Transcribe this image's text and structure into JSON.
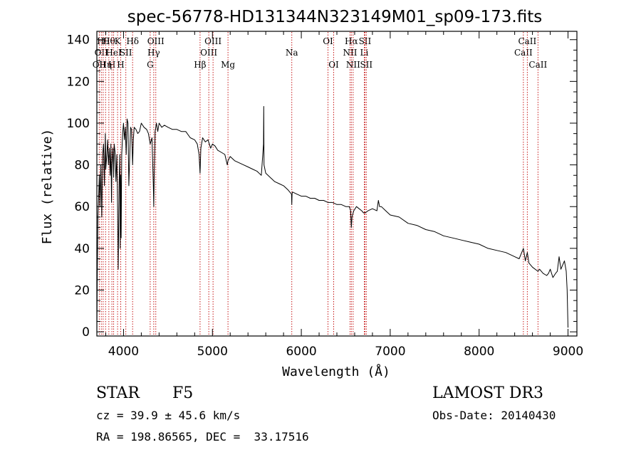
{
  "chart_data": {
    "type": "line",
    "title": "spec-56778-HD131344N323149M01_sp09-173.fits",
    "xlabel": "Wavelength (Å)",
    "ylabel": "Flux (relative)",
    "xlim": [
      3700,
      9100
    ],
    "ylim": [
      -2,
      144
    ],
    "xticks": [
      4000,
      5000,
      6000,
      7000,
      8000,
      9000
    ],
    "xtick_labels": [
      "4000",
      "5000",
      "6000",
      "7000",
      "8000",
      "9000"
    ],
    "yticks": [
      0,
      20,
      40,
      60,
      80,
      100,
      120,
      140
    ],
    "ytick_labels": [
      "0",
      "20",
      "40",
      "60",
      "80",
      "100",
      "120",
      "140"
    ],
    "grid": false,
    "series": [
      {
        "name": "spectrum",
        "x": [
          3700,
          3705,
          3712,
          3720,
          3728,
          3735,
          3745,
          3755,
          3765,
          3775,
          3785,
          3795,
          3800,
          3812,
          3822,
          3830,
          3840,
          3850,
          3858,
          3865,
          3870,
          3880,
          3889,
          3895,
          3905,
          3915,
          3925,
          3933,
          3940,
          3950,
          3958,
          3963,
          3968,
          3973,
          3980,
          3990,
          4000,
          4010,
          4020,
          4030,
          4040,
          4050,
          4060,
          4070,
          4080,
          4090,
          4102,
          4110,
          4120,
          4140,
          4160,
          4180,
          4200,
          4230,
          4260,
          4280,
          4300,
          4320,
          4335,
          4340,
          4345,
          4355,
          4370,
          4385,
          4400,
          4430,
          4460,
          4500,
          4550,
          4600,
          4650,
          4700,
          4750,
          4800,
          4830,
          4850,
          4861,
          4870,
          4890,
          4920,
          4950,
          4980,
          5000,
          5030,
          5060,
          5100,
          5140,
          5167,
          5175,
          5200,
          5250,
          5300,
          5350,
          5400,
          5450,
          5500,
          5550,
          5575,
          5577,
          5580,
          5600,
          5650,
          5700,
          5750,
          5800,
          5850,
          5890,
          5893,
          5896,
          5900,
          5950,
          6000,
          6050,
          6100,
          6150,
          6200,
          6250,
          6300,
          6350,
          6400,
          6450,
          6500,
          6540,
          6555,
          6563,
          6570,
          6590,
          6620,
          6650,
          6680,
          6700,
          6720,
          6750,
          6800,
          6850,
          6867,
          6880,
          6900,
          6950,
          7000,
          7100,
          7200,
          7300,
          7400,
          7500,
          7600,
          7700,
          7800,
          7900,
          8000,
          8100,
          8200,
          8300,
          8400,
          8450,
          8498,
          8520,
          8542,
          8560,
          8600,
          8662,
          8680,
          8720,
          8760,
          8780,
          8800,
          8830,
          8860,
          8880,
          8900,
          8920,
          8940,
          8960,
          8980,
          8990,
          9000
        ],
        "y": [
          0,
          28,
          55,
          65,
          75,
          60,
          80,
          55,
          85,
          90,
          70,
          95,
          78,
          85,
          92,
          80,
          88,
          75,
          90,
          62,
          80,
          88,
          74,
          90,
          86,
          72,
          85,
          60,
          30,
          70,
          85,
          40,
          75,
          45,
          85,
          95,
          100,
          92,
          98,
          85,
          102,
          100,
          70,
          85,
          98,
          97,
          80,
          92,
          98,
          97,
          95,
          96,
          100,
          98,
          97,
          95,
          90,
          93,
          70,
          60,
          75,
          96,
          100,
          96,
          100,
          98,
          99,
          98,
          97,
          97,
          96,
          96,
          93,
          92,
          90,
          85,
          76,
          88,
          93,
          91,
          92,
          88,
          90,
          89,
          87,
          86,
          85,
          80,
          82,
          84,
          82,
          81,
          80,
          79,
          78,
          77,
          75,
          90,
          108,
          80,
          76,
          74,
          72,
          71,
          70,
          68,
          66,
          61,
          66,
          67,
          66,
          65,
          65,
          64,
          64,
          63,
          63,
          62,
          62,
          61,
          61,
          60,
          60,
          58,
          50,
          55,
          58,
          60,
          59,
          58,
          57,
          57,
          58,
          59,
          58,
          63,
          60,
          60,
          58,
          56,
          55,
          52,
          51,
          49,
          48,
          46,
          45,
          44,
          43,
          42,
          40,
          39,
          38,
          36,
          35,
          40,
          34,
          38,
          33,
          31,
          29,
          30,
          28,
          27,
          28,
          30,
          26,
          28,
          29,
          36,
          30,
          32,
          34,
          29,
          20,
          2
        ]
      }
    ],
    "line_markers": [
      {
        "wave": 3727,
        "row": 2,
        "label": "OII"
      },
      {
        "wave": 3750,
        "row": 1,
        "label": "OII"
      },
      {
        "wave": 3771,
        "row": 0,
        "label": "Hθ"
      },
      {
        "wave": 3798,
        "row": 2,
        "label": "Hη"
      },
      {
        "wave": 3835,
        "row": 0,
        "label": "Hθ"
      },
      {
        "wave": 3869,
        "row": 2,
        "label": "H"
      },
      {
        "wave": 3889,
        "row": 1,
        "label": "HeI"
      },
      {
        "wave": 3933,
        "row": 0,
        "label": "K"
      },
      {
        "wave": 3968,
        "row": 2,
        "label": "H"
      },
      {
        "wave": 4026,
        "row": 1,
        "label": "SII"
      },
      {
        "wave": 4102,
        "row": 0,
        "label": "Hδ"
      },
      {
        "wave": 4300,
        "row": 2,
        "label": "G"
      },
      {
        "wave": 4340,
        "row": 1,
        "label": "Hγ"
      },
      {
        "wave": 4363,
        "row": 0,
        "label": "OIII"
      },
      {
        "wave": 4861,
        "row": 2,
        "label": "Hβ"
      },
      {
        "wave": 4959,
        "row": 1,
        "label": "OIII"
      },
      {
        "wave": 5007,
        "row": 0,
        "label": "OIII"
      },
      {
        "wave": 5175,
        "row": 2,
        "label": "Mg"
      },
      {
        "wave": 5893,
        "row": 1,
        "label": "Na"
      },
      {
        "wave": 6300,
        "row": 0,
        "label": "OI"
      },
      {
        "wave": 6364,
        "row": 2,
        "label": "OI"
      },
      {
        "wave": 6548,
        "row": 1,
        "label": "NII"
      },
      {
        "wave": 6563,
        "row": 0,
        "label": "Hα"
      },
      {
        "wave": 6583,
        "row": 2,
        "label": "NII"
      },
      {
        "wave": 6708,
        "row": 1,
        "label": "Li"
      },
      {
        "wave": 6716,
        "row": 0,
        "label": "SII"
      },
      {
        "wave": 6731,
        "row": 2,
        "label": "SII"
      },
      {
        "wave": 8498,
        "row": 1,
        "label": "CaII"
      },
      {
        "wave": 8542,
        "row": 0,
        "label": "CaII"
      },
      {
        "wave": 8662,
        "row": 2,
        "label": "CaII"
      }
    ],
    "colors": {
      "spectrum": "#000000",
      "line_markers": "#c00000",
      "axes": "#000000"
    }
  },
  "info": {
    "object_class": "STAR",
    "subclass": "F5",
    "survey": "LAMOST DR3",
    "cz": "cz = 39.9 ± 45.6 km/s",
    "obs_date": "Obs-Date: 20140430",
    "coords": "RA = 198.86565, DEC =  33.17516"
  }
}
